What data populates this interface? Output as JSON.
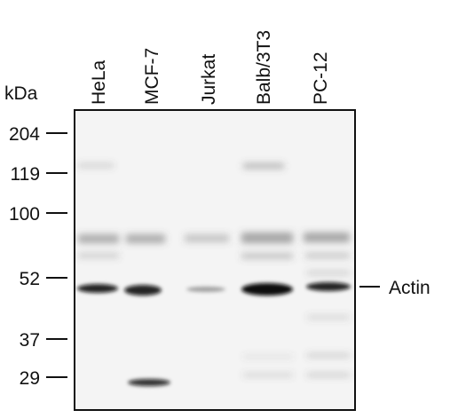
{
  "units": "kDa",
  "lanes": [
    "HeLa",
    "MCF-7",
    "Jurkat",
    "Balb/3T3",
    "PC-12"
  ],
  "markers": [
    "204",
    "119",
    "100",
    "52",
    "37",
    "29"
  ],
  "band_label": "Actin"
}
